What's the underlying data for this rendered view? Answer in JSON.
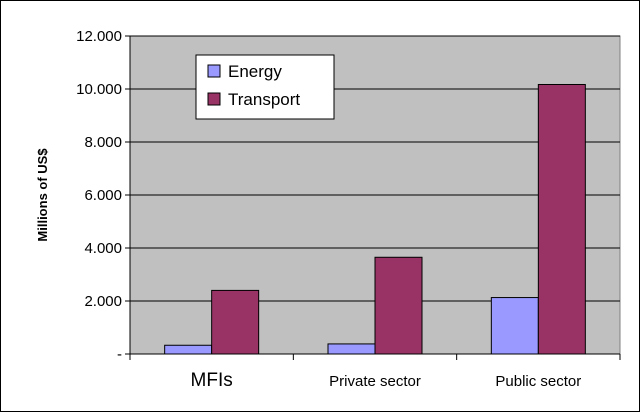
{
  "chart_data": {
    "type": "bar",
    "title": "",
    "xlabel": "",
    "ylabel": "Millions of US$",
    "categories": [
      "MFIs",
      "Private sector",
      "Public sector"
    ],
    "series": [
      {
        "name": "Energy",
        "color": "#9999ff",
        "values": [
          330,
          380,
          2130
        ]
      },
      {
        "name": "Transport",
        "color": "#993366",
        "values": [
          2400,
          3650,
          10170
        ]
      }
    ],
    "ylim": [
      0,
      12000
    ],
    "yticks": [
      {
        "value": 0,
        "label": "-"
      },
      {
        "value": 2000,
        "label": "2.000"
      },
      {
        "value": 4000,
        "label": "4.000"
      },
      {
        "value": 6000,
        "label": "6.000"
      },
      {
        "value": 8000,
        "label": "8.000"
      },
      {
        "value": 10000,
        "label": "10.000"
      },
      {
        "value": 12000,
        "label": "12.000"
      }
    ],
    "grid": true,
    "legend_position": "top-left",
    "plot_background": "#c0c0c0"
  }
}
